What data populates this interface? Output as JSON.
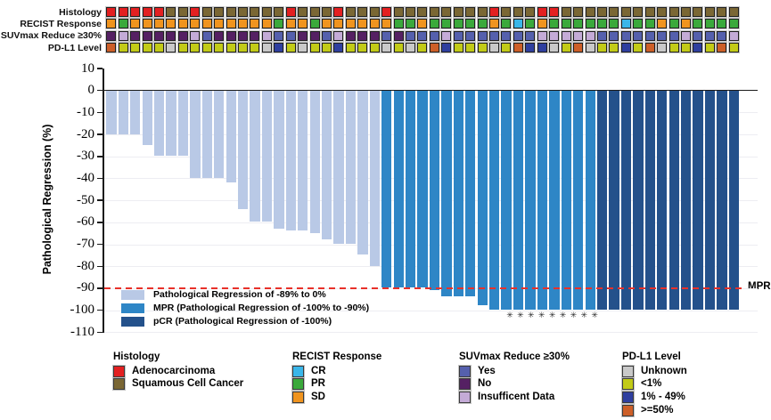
{
  "figure": {
    "ylabel": "Pathological Regression (%)",
    "mpr_line_label": "MPR",
    "star_symbol": "✳"
  },
  "palette": {
    "A": "#e32021",
    "S": "#7a6734",
    "O": "#f0941f",
    "G": "#3aa93b",
    "C": "#3ab6e9",
    "B": "#5560ad",
    "P": "#552063",
    "L": "#c4abd7",
    "GR": "#c9c9c9",
    "Y": "#c2cb17",
    "DB": "#2f3f9f",
    "OR": "#cd5f28",
    "bar_reg": "#b9c9e6",
    "bar_mpr": "#2e86c6",
    "bar_pcr": "#24518b",
    "mpr_line": "#e8312a"
  },
  "tracks": {
    "rows": [
      {
        "label": "Histology",
        "keys": [
          "A",
          "A",
          "A",
          "A",
          "A",
          "S",
          "S",
          "A",
          "S",
          "S",
          "S",
          "S",
          "S",
          "S",
          "S",
          "A",
          "S",
          "S",
          "S",
          "A",
          "S",
          "S",
          "S",
          "A",
          "S",
          "S",
          "S",
          "S",
          "S",
          "S",
          "S",
          "S",
          "A",
          "S",
          "S",
          "S",
          "A",
          "A",
          "S",
          "S",
          "S",
          "S",
          "S",
          "S",
          "S",
          "S",
          "S",
          "S",
          "S",
          "S",
          "S",
          "S",
          "S"
        ]
      },
      {
        "label": "RECIST Response",
        "keys": [
          "O",
          "G",
          "O",
          "O",
          "O",
          "O",
          "O",
          "O",
          "O",
          "O",
          "O",
          "O",
          "O",
          "O",
          "G",
          "O",
          "O",
          "G",
          "O",
          "O",
          "O",
          "O",
          "O",
          "O",
          "G",
          "G",
          "O",
          "G",
          "G",
          "G",
          "G",
          "G",
          "O",
          "G",
          "C",
          "G",
          "O",
          "G",
          "G",
          "G",
          "G",
          "G",
          "G",
          "C",
          "G",
          "G",
          "O",
          "G",
          "O",
          "G",
          "G",
          "G",
          "G"
        ]
      },
      {
        "label": "SUVmax Reduce ≥30%",
        "keys": [
          "P",
          "L",
          "P",
          "P",
          "P",
          "P",
          "P",
          "L",
          "B",
          "P",
          "P",
          "P",
          "P",
          "L",
          "B",
          "B",
          "P",
          "P",
          "B",
          "L",
          "P",
          "P",
          "P",
          "B",
          "P",
          "B",
          "B",
          "B",
          "L",
          "B",
          "B",
          "B",
          "B",
          "B",
          "B",
          "B",
          "L",
          "L",
          "L",
          "L",
          "L",
          "B",
          "B",
          "B",
          "B",
          "B",
          "B",
          "B",
          "L",
          "B",
          "B",
          "B",
          "L"
        ]
      },
      {
        "label": "PD-L1 Level",
        "keys": [
          "OR",
          "Y",
          "Y",
          "Y",
          "Y",
          "GR",
          "Y",
          "Y",
          "Y",
          "Y",
          "Y",
          "Y",
          "Y",
          "GR",
          "DB",
          "Y",
          "GR",
          "Y",
          "Y",
          "DB",
          "Y",
          "Y",
          "Y",
          "GR",
          "Y",
          "GR",
          "Y",
          "OR",
          "DB",
          "Y",
          "Y",
          "Y",
          "GR",
          "Y",
          "OR",
          "DB",
          "DB",
          "GR",
          "Y",
          "OR",
          "GR",
          "Y",
          "Y",
          "DB",
          "Y",
          "OR",
          "GR",
          "Y",
          "Y",
          "DB",
          "Y",
          "OR",
          "Y"
        ]
      }
    ]
  },
  "chart_data": {
    "type": "bar",
    "title": "",
    "xlabel": "",
    "ylabel": "Pathological Regression (%)",
    "ylim": [
      -110,
      10
    ],
    "yticks": [
      10,
      0,
      -10,
      -20,
      -30,
      -40,
      -50,
      -60,
      -70,
      -80,
      -90,
      -100,
      -110
    ],
    "grid": true,
    "series": [
      {
        "name": "Pathological Regression (%)",
        "values": [
          -20,
          -20,
          -20,
          -25,
          -30,
          -30,
          -30,
          -40,
          -40,
          -40,
          -42,
          -54,
          -60,
          -60,
          -63,
          -64,
          -64,
          -65,
          -68,
          -70,
          -70,
          -75,
          -80,
          -90,
          -90,
          -90,
          -90,
          -91,
          -94,
          -94,
          -94,
          -98,
          -100,
          -100,
          -100,
          -100,
          -100,
          -100,
          -100,
          -100,
          -100,
          -100,
          -100,
          -100,
          -100,
          -100,
          -100,
          -100,
          -100,
          -100,
          -100,
          -100,
          -100
        ]
      }
    ],
    "groups": [
      "reg",
      "reg",
      "reg",
      "reg",
      "reg",
      "reg",
      "reg",
      "reg",
      "reg",
      "reg",
      "reg",
      "reg",
      "reg",
      "reg",
      "reg",
      "reg",
      "reg",
      "reg",
      "reg",
      "reg",
      "reg",
      "reg",
      "reg",
      "mpr",
      "mpr",
      "mpr",
      "mpr",
      "mpr",
      "mpr",
      "mpr",
      "mpr",
      "mpr",
      "mpr",
      "mpr",
      "mpr",
      "mpr",
      "mpr",
      "mpr",
      "mpr",
      "mpr",
      "mpr",
      "pcr",
      "pcr",
      "pcr",
      "pcr",
      "pcr",
      "pcr",
      "pcr",
      "pcr",
      "pcr",
      "pcr",
      "pcr",
      "pcr"
    ],
    "starred_indices": [
      33,
      34,
      35,
      36,
      37,
      38,
      39,
      40,
      41
    ],
    "reference_line": {
      "y": -90,
      "label": "MPR",
      "style": "dashed",
      "color": "#e8312a"
    },
    "legend_position": "inside-bottom-left",
    "legend": [
      {
        "key": "reg",
        "color": "#b9c9e6",
        "label": "Pathological Regression of -89% to 0%"
      },
      {
        "key": "mpr",
        "color": "#2e86c6",
        "label": "MPR (Pathological Regression of -100% to -90%)"
      },
      {
        "key": "pcr",
        "color": "#24518b",
        "label": "pCR (Pathological Regression of -100%)"
      }
    ]
  },
  "bottom_legends": [
    {
      "title": "Histology",
      "items": [
        {
          "key": "A",
          "label": "Adenocarcinoma"
        },
        {
          "key": "S",
          "label": "Squamous Cell Cancer"
        }
      ]
    },
    {
      "title": "RECIST Response",
      "items": [
        {
          "key": "C",
          "label": "CR"
        },
        {
          "key": "G",
          "label": "PR"
        },
        {
          "key": "O",
          "label": "SD"
        }
      ]
    },
    {
      "title": "SUVmax Reduce ≥30%",
      "items": [
        {
          "key": "B",
          "label": "Yes"
        },
        {
          "key": "P",
          "label": "No"
        },
        {
          "key": "L",
          "label": "Insufficent Data"
        }
      ]
    },
    {
      "title": "PD-L1 Level",
      "items": [
        {
          "key": "GR",
          "label": "Unknown"
        },
        {
          "key": "Y",
          "label": "<1%"
        },
        {
          "key": "DB",
          "label": "1% - 49%"
        },
        {
          "key": "OR",
          "label": ">=50%"
        }
      ]
    }
  ]
}
